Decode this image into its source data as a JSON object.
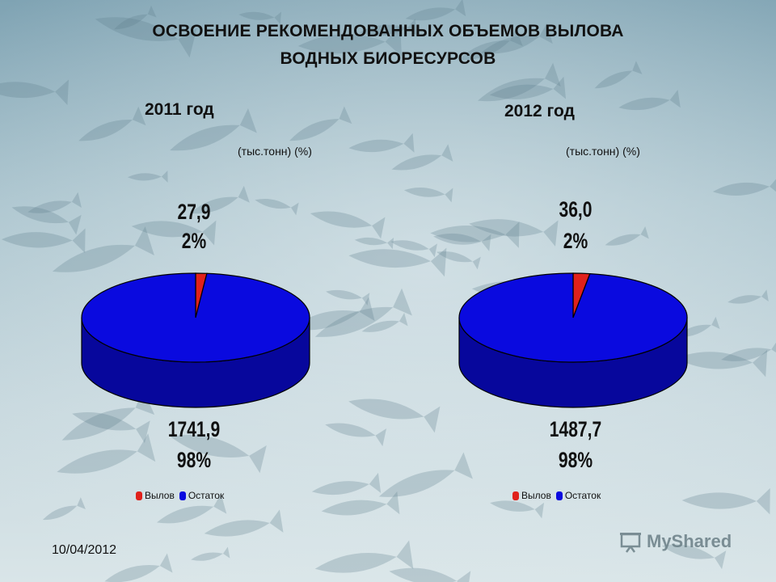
{
  "slide": {
    "title_line1": "ОСВОЕНИЕ РЕКОМЕНДОВАННЫХ ОБЪЕМОВ ВЫЛОВА",
    "title_line2": "ВОДНЫХ БИОРЕСУРСОВ",
    "date": "10/04/2012",
    "watermark": "MyShared"
  },
  "chart_data": [
    {
      "type": "pie",
      "title": "2011 год",
      "subtitle": "(тыс.тонн) (%)",
      "legend_position": "bottom",
      "categories": [
        "Вылов",
        "Остаток"
      ],
      "values": [
        27.9,
        1741.9
      ],
      "value_labels": [
        "27,9",
        "1741,9"
      ],
      "percent_labels": [
        "2%",
        "98%"
      ],
      "colors": [
        "#e0211b",
        "#0a0adf"
      ]
    },
    {
      "type": "pie",
      "title": "2012 год",
      "subtitle": "(тыс.тонн) (%)",
      "legend_position": "bottom",
      "categories": [
        "Вылов",
        "Остаток"
      ],
      "values": [
        36.0,
        1487.7
      ],
      "value_labels": [
        "36,0",
        "1487,7"
      ],
      "percent_labels": [
        "2%",
        "98%"
      ],
      "colors": [
        "#e0211b",
        "#0a0adf"
      ]
    }
  ]
}
